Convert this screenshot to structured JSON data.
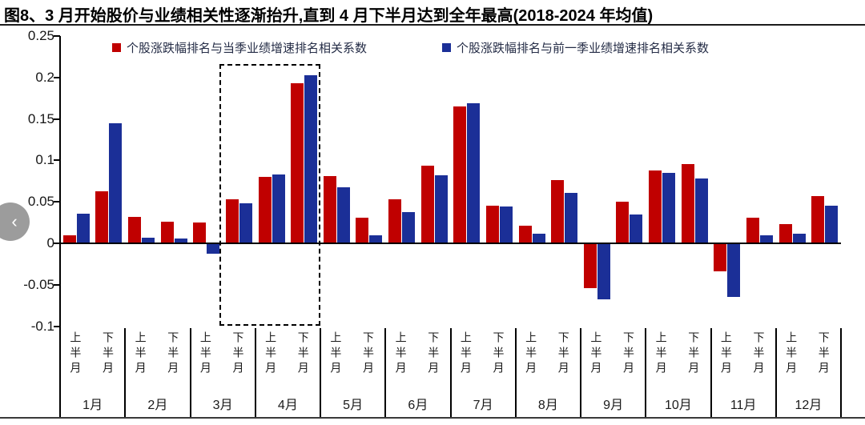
{
  "title": "图8、3 月开始股价与业绩相关性逐渐抬升,直到 4 月下半月达到全年最高(2018-2024 年均值)",
  "carousel": {
    "prev_icon": "‹"
  },
  "chart_data": {
    "type": "bar",
    "title": "图8、3 月开始股价与业绩相关性逐渐抬升,直到 4 月下半月达到全年最高(2018-2024 年均值)",
    "months": [
      "1月",
      "2月",
      "3月",
      "4月",
      "5月",
      "6月",
      "7月",
      "8月",
      "9月",
      "10月",
      "11月",
      "12月"
    ],
    "half_labels": [
      "上半月",
      "下半月"
    ],
    "categories": [
      "1月上半月",
      "1月下半月",
      "2月上半月",
      "2月下半月",
      "3月上半月",
      "3月下半月",
      "4月上半月",
      "4月下半月",
      "5月上半月",
      "5月下半月",
      "6月上半月",
      "6月下半月",
      "7月上半月",
      "7月下半月",
      "8月上半月",
      "8月下半月",
      "9月上半月",
      "9月下半月",
      "10月上半月",
      "10月下半月",
      "11月上半月",
      "11月下半月",
      "12月上半月",
      "12月下半月"
    ],
    "series": [
      {
        "name": "个股涨跌幅排名与当季业绩增速排名相关系数",
        "color": "#c00000",
        "values": [
          0.01,
          0.063,
          0.032,
          0.026,
          0.025,
          0.053,
          0.08,
          0.193,
          0.081,
          0.031,
          0.053,
          0.094,
          0.165,
          0.045,
          0.021,
          0.076,
          -0.054,
          0.05,
          0.088,
          0.096,
          -0.034,
          0.031,
          0.023,
          0.057
        ]
      },
      {
        "name": "个股涨跌幅排名与前一季业绩增速排名相关系数",
        "color": "#1b2f97",
        "values": [
          0.036,
          0.145,
          0.007,
          0.006,
          -0.013,
          0.048,
          0.083,
          0.203,
          0.068,
          0.01,
          0.038,
          0.082,
          0.169,
          0.044,
          0.012,
          0.061,
          -0.068,
          0.035,
          0.085,
          0.078,
          -0.065,
          0.01,
          0.012,
          0.045
        ]
      }
    ],
    "ylim": [
      -0.1,
      0.25
    ],
    "yticks": [
      0.25,
      0.2,
      0.15,
      0.1,
      0.05,
      0,
      -0.05,
      -0.1
    ],
    "ytick_labels": [
      "0.25",
      "0.2",
      "0.15",
      "0.1",
      "0.05",
      "0",
      "-0.05",
      "-0.1"
    ],
    "grid": false,
    "legend_position": "top",
    "highlight_box": {
      "start_category_index": 5,
      "end_category_index": 7,
      "style": "dashed"
    }
  }
}
